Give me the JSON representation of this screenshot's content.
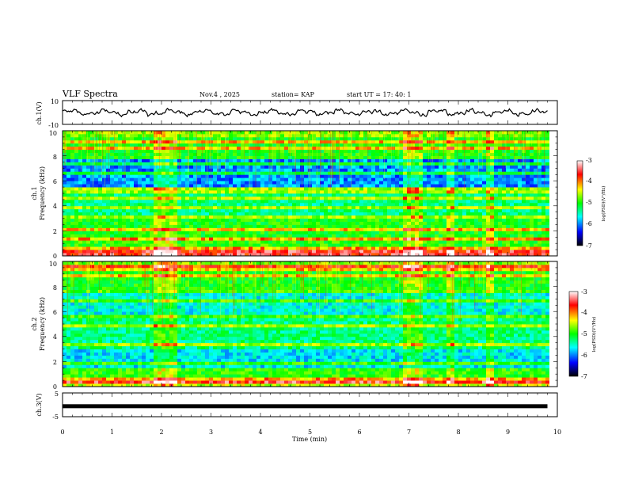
{
  "header": {
    "title": "VLF Spectra",
    "date": "Nov.4  , 2025",
    "station": "station= KAP",
    "start": "start  UT  =   17: 40: 1"
  },
  "chart_data": [
    {
      "id": "ch1-voltage",
      "type": "line",
      "ylabel": "ch.1(V)",
      "ylim": [
        -10,
        10
      ],
      "ytick_labels": [
        "10",
        "-10"
      ],
      "x_unit": "min",
      "xlim": [
        0,
        10
      ],
      "data_end_min": 9.8,
      "series": [
        {
          "name": "ch.1",
          "description": "waveform amplitude, roughly -2 to 2 V"
        }
      ]
    },
    {
      "id": "ch1-spectrogram",
      "type": "heatmap",
      "ylabel": "ch.1\nFrequency (kHz)",
      "ylabel_lines": [
        "ch.1",
        "Frequency (kHz)"
      ],
      "ylim": [
        0,
        10
      ],
      "ytick_labels": [
        "10",
        "8",
        "6",
        "4",
        "2",
        "0"
      ],
      "xlim": [
        0,
        10
      ],
      "colorbar": {
        "label": "log(PSD)(V²/Hz)",
        "range": [
          -7,
          -3
        ],
        "tick_labels": [
          "-3",
          "-4",
          "-5",
          "-6",
          "-7"
        ],
        "colors": [
          "#ffffff",
          "#ff0000",
          "#ffff00",
          "#00ff00",
          "#00ffff",
          "#0000ff",
          "#000000"
        ]
      }
    },
    {
      "id": "ch2-spectrogram",
      "type": "heatmap",
      "ylabel": "ch.2\nFrequency (kHz)",
      "ylabel_lines": [
        "ch.2",
        "Frequency (kHz)"
      ],
      "ylim": [
        0,
        10
      ],
      "ytick_labels": [
        "10",
        "8",
        "6",
        "4",
        "2",
        "0"
      ],
      "xlim": [
        0,
        10
      ],
      "colorbar": {
        "label": "log(PSD)(V²/Hz)",
        "range": [
          -7,
          -3
        ],
        "tick_labels": [
          "-3",
          "-4",
          "-5",
          "-6",
          "-7"
        ],
        "colors": [
          "#ffffff",
          "#ff0000",
          "#ffff00",
          "#00ff00",
          "#00ffff",
          "#0000ff",
          "#000000"
        ]
      }
    },
    {
      "id": "ch3-voltage",
      "type": "line",
      "ylabel": "ch.3(V)",
      "ylim": [
        -5,
        5
      ],
      "ytick_labels": [
        "5",
        "-5"
      ],
      "xlim": [
        0,
        10
      ],
      "constant_value": -0.6,
      "data_end_min": 9.8,
      "xlabel": "Time  (min)",
      "xtick_labels": [
        "0",
        "1",
        "2",
        "3",
        "4",
        "5",
        "6",
        "7",
        "8",
        "9",
        "10"
      ]
    }
  ]
}
